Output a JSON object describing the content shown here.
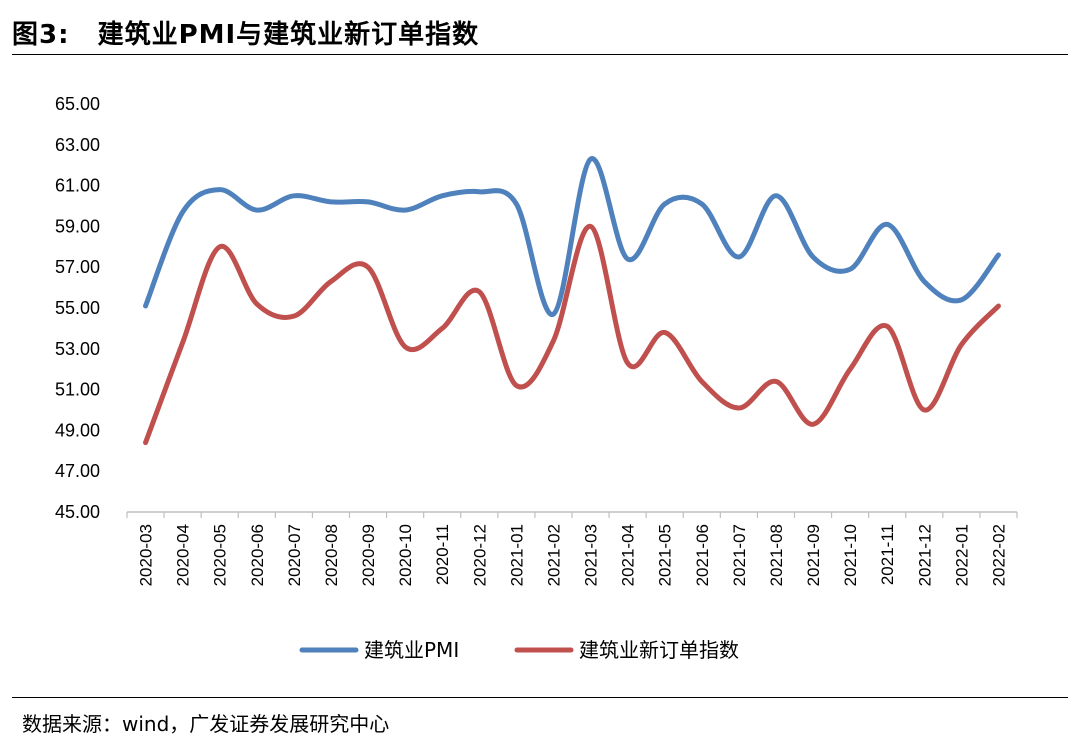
{
  "header": {
    "fig_label": "图3:",
    "title": "建筑业PMI与建筑业新订单指数"
  },
  "source": "数据来源：wind，广发证券发展研究中心",
  "chart_data": {
    "type": "line",
    "title": "建筑业PMI与建筑业新订单指数",
    "xlabel": "",
    "ylabel": "",
    "ylim": [
      45,
      65
    ],
    "yticks": [
      "45.00",
      "47.00",
      "49.00",
      "51.00",
      "53.00",
      "55.00",
      "57.00",
      "59.00",
      "61.00",
      "63.00",
      "65.00"
    ],
    "categories": [
      "2020-03",
      "2020-04",
      "2020-05",
      "2020-06",
      "2020-07",
      "2020-08",
      "2020-09",
      "2020-10",
      "2020-11",
      "2020-12",
      "2021-01",
      "2021-02",
      "2021-03",
      "2021-04",
      "2021-05",
      "2021-06",
      "2021-07",
      "2021-08",
      "2021-09",
      "2021-10",
      "2021-11",
      "2021-12",
      "2022-01",
      "2022-02"
    ],
    "grid": false,
    "legend": "bottom",
    "series": [
      {
        "name": "建筑业PMI",
        "color": "#4f81bd",
        "values": [
          55.1,
          59.7,
          60.8,
          59.8,
          60.5,
          60.2,
          60.2,
          59.8,
          60.5,
          60.7,
          60.1,
          54.7,
          62.3,
          57.4,
          60.1,
          60.1,
          57.5,
          60.5,
          57.5,
          56.9,
          59.1,
          56.3,
          55.4,
          57.6
        ]
      },
      {
        "name": "建筑业新订单指数",
        "color": "#c0504d",
        "values": [
          48.4,
          53.3,
          58.0,
          55.2,
          54.6,
          56.3,
          57.0,
          53.1,
          54.0,
          55.8,
          51.2,
          53.4,
          59.0,
          52.3,
          53.8,
          51.4,
          50.1,
          51.4,
          49.3,
          52.0,
          54.1,
          50.0,
          53.2,
          55.1
        ]
      }
    ]
  }
}
